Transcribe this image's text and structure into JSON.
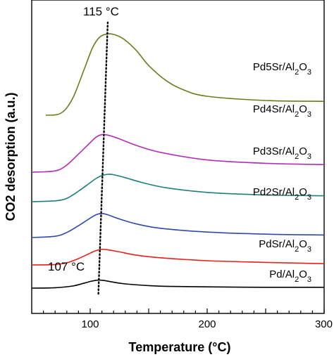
{
  "chart_data": {
    "type": "line",
    "title": "",
    "xlabel": "Temperature (°C)",
    "ylabel": "CO2 desorption (a.u.)",
    "xlim": [
      50,
      300
    ],
    "xticks": [
      100,
      200,
      300
    ],
    "yticks": [],
    "grid": false,
    "legend": "labels beside each curve on the right",
    "annotations": [
      {
        "text": "115 °C",
        "at_x": 115
      },
      {
        "text": "107 °C",
        "at_x": 107
      }
    ],
    "peak_line": {
      "style": "dotted",
      "from": [
        107,
        0.0
      ],
      "to": [
        115,
        6.1
      ]
    },
    "series": [
      {
        "name": "Pd/Al2O3",
        "color": "#000000",
        "x": [
          50,
          70,
          85,
          95,
          102,
          107,
          112,
          120,
          130,
          150,
          170,
          200,
          250,
          300
        ],
        "y": [
          0.0,
          0.01,
          0.05,
          0.12,
          0.17,
          0.19,
          0.18,
          0.14,
          0.1,
          0.06,
          0.04,
          0.03,
          0.02,
          0.02
        ]
      },
      {
        "name": "PdSr/Al2O3",
        "color": "#e8201c",
        "x": [
          50,
          70,
          80,
          90,
          100,
          105,
          110,
          115,
          125,
          140,
          160,
          200,
          250,
          300
        ],
        "y": [
          0.55,
          0.56,
          0.6,
          0.7,
          0.83,
          0.89,
          0.92,
          0.91,
          0.86,
          0.78,
          0.72,
          0.65,
          0.61,
          0.58
        ]
      },
      {
        "name": "Pd2Sr/Al2O3",
        "color": "#2f49a8",
        "x": [
          50,
          70,
          80,
          90,
          100,
          105,
          110,
          115,
          125,
          140,
          160,
          200,
          250,
          300
        ],
        "y": [
          1.2,
          1.23,
          1.32,
          1.48,
          1.66,
          1.74,
          1.77,
          1.74,
          1.64,
          1.52,
          1.42,
          1.33,
          1.28,
          1.26
        ]
      },
      {
        "name": "Pd3Sr/Al2O3",
        "color": "#1f7f7a",
        "x": [
          50,
          70,
          80,
          90,
          100,
          105,
          110,
          115,
          120,
          130,
          145,
          165,
          200,
          250,
          300
        ],
        "y": [
          2.05,
          2.07,
          2.13,
          2.3,
          2.5,
          2.6,
          2.67,
          2.7,
          2.69,
          2.62,
          2.5,
          2.38,
          2.27,
          2.21,
          2.19
        ]
      },
      {
        "name": "Pd4Sr/Al2O3",
        "color": "#b22fb5",
        "x": [
          50,
          70,
          80,
          90,
          100,
          105,
          110,
          115,
          125,
          140,
          160,
          200,
          250,
          300
        ],
        "y": [
          2.75,
          2.78,
          2.92,
          3.18,
          3.45,
          3.58,
          3.64,
          3.63,
          3.54,
          3.38,
          3.22,
          3.04,
          2.96,
          2.93
        ]
      },
      {
        "name": "Pd5Sr/Al2O3",
        "color": "#6e7a1c",
        "x": [
          62,
          75,
          85,
          95,
          102,
          108,
          115,
          122,
          130,
          140,
          150,
          165,
          180,
          200,
          250,
          300
        ],
        "y": [
          4.1,
          4.15,
          4.5,
          5.2,
          5.7,
          5.95,
          6.03,
          6.0,
          5.88,
          5.62,
          5.28,
          4.92,
          4.7,
          4.55,
          4.45,
          4.43
        ]
      }
    ]
  }
}
